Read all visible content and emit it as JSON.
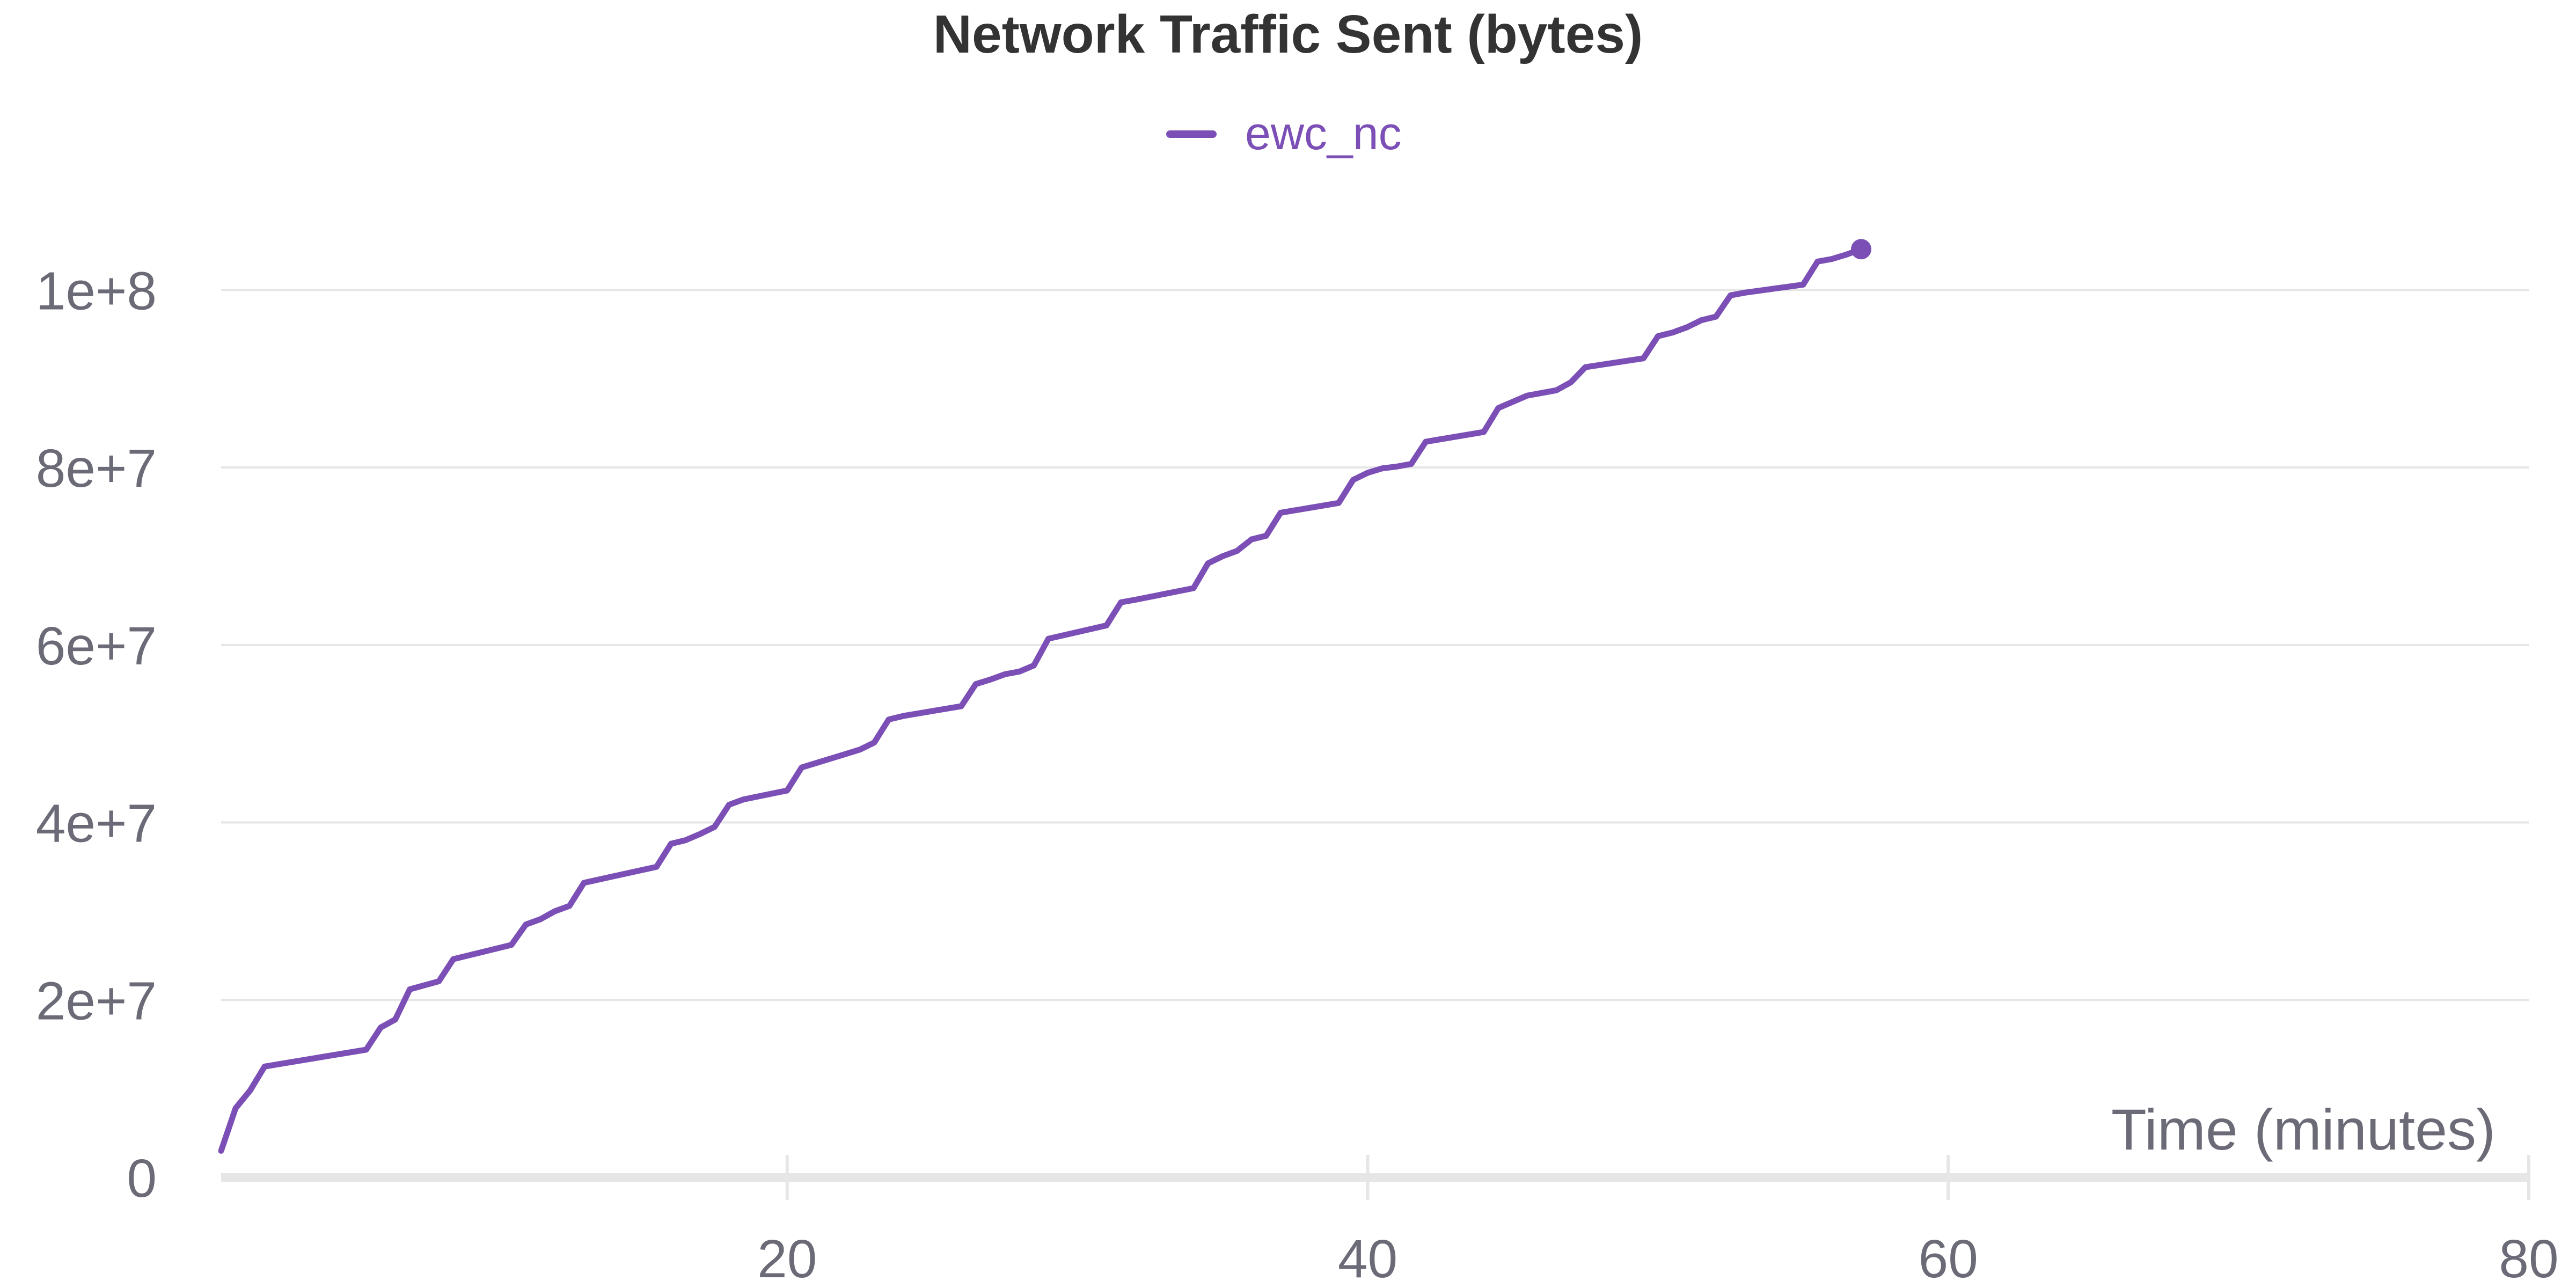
{
  "chart_data": {
    "type": "line",
    "title": "Network Traffic Sent (bytes)",
    "xlabel": "Time (minutes)",
    "ylabel": "",
    "xlim": [
      0.5,
      80
    ],
    "ylim": [
      0,
      110000000
    ],
    "x_ticks": [
      {
        "value": 20,
        "label": "20"
      },
      {
        "value": 40,
        "label": "40"
      },
      {
        "value": 60,
        "label": "60"
      },
      {
        "value": 80,
        "label": "80"
      }
    ],
    "y_ticks": [
      {
        "value": 0,
        "label": "0"
      },
      {
        "value": 20000000,
        "label": "2e+7"
      },
      {
        "value": 40000000,
        "label": "4e+7"
      },
      {
        "value": 60000000,
        "label": "6e+7"
      },
      {
        "value": 80000000,
        "label": "8e+7"
      },
      {
        "value": 100000000,
        "label": "1e+8"
      }
    ],
    "grid": true,
    "legend_position": "top-center",
    "series": [
      {
        "name": "ewc_nc",
        "color": "#7b4fb5",
        "marker_on_last": true,
        "x": [
          0.5,
          1.0,
          1.5,
          2.0,
          5.5,
          6.0,
          6.5,
          7.0,
          8.0,
          8.5,
          10.5,
          11.0,
          11.5,
          12.0,
          12.5,
          13.0,
          15.5,
          16.0,
          16.5,
          17.0,
          17.5,
          18.0,
          18.5,
          20.0,
          20.5,
          21.0,
          21.5,
          22.0,
          22.5,
          23.0,
          23.5,
          24.0,
          26.0,
          26.5,
          27.0,
          27.5,
          28.0,
          28.5,
          29.0,
          31.0,
          31.5,
          32.0,
          34.0,
          34.5,
          35.0,
          35.5,
          36.0,
          36.5,
          37.0,
          39.0,
          39.5,
          40.0,
          40.5,
          41.0,
          41.5,
          42.0,
          44.0,
          44.5,
          45.0,
          45.5,
          46.0,
          46.5,
          47.0,
          47.5,
          49.5,
          50.0,
          50.5,
          51.0,
          51.5,
          52.0,
          52.5,
          53.0,
          55.0,
          55.5,
          56.0,
          56.5,
          57.0
        ],
        "y": [
          3000000,
          7800000,
          9800000,
          12500000,
          14400000,
          16900000,
          17800000,
          21200000,
          22100000,
          24600000,
          26200000,
          28500000,
          29100000,
          30000000,
          30600000,
          33200000,
          35000000,
          37600000,
          38000000,
          38700000,
          39500000,
          42000000,
          42600000,
          43600000,
          46200000,
          46700000,
          47200000,
          47700000,
          48200000,
          49000000,
          51600000,
          52000000,
          53100000,
          55600000,
          56100000,
          56700000,
          57000000,
          57700000,
          60700000,
          62200000,
          64800000,
          65100000,
          66400000,
          69200000,
          70000000,
          70600000,
          71900000,
          72300000,
          74900000,
          76000000,
          78600000,
          79400000,
          79900000,
          80100000,
          80400000,
          82900000,
          84000000,
          86700000,
          87400000,
          88100000,
          88400000,
          88700000,
          89600000,
          91300000,
          92300000,
          94800000,
          95200000,
          95800000,
          96600000,
          97000000,
          99400000,
          99700000,
          100600000,
          103200000,
          103500000,
          104000000,
          104600000
        ]
      }
    ]
  }
}
